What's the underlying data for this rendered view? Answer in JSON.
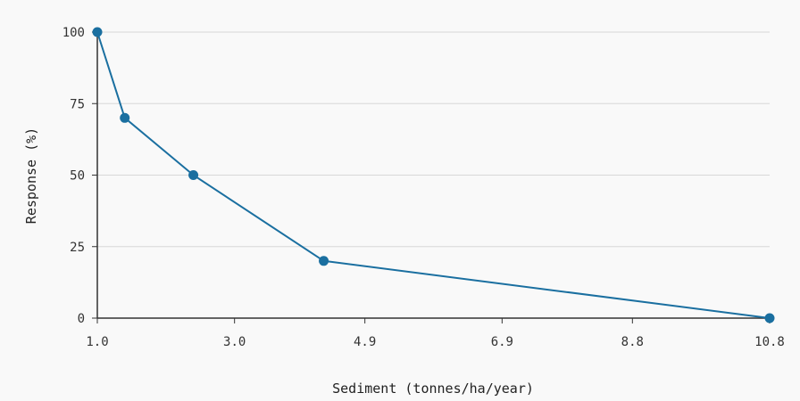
{
  "chart_data": {
    "type": "line",
    "title": "",
    "xlabel": "Sediment (tonnes/ha/year)",
    "ylabel": "Response (%)",
    "x_ticks": [
      "1.0",
      "3.0",
      "4.9",
      "6.9",
      "8.8",
      "10.8"
    ],
    "y_ticks": [
      "0",
      "25",
      "50",
      "75",
      "100"
    ],
    "xlim": [
      1.0,
      10.8
    ],
    "ylim": [
      0,
      100
    ],
    "grid": "horizontal",
    "legend": "none",
    "series": [
      {
        "color": "#1a6fa0",
        "x": [
          1.0,
          1.4,
          2.4,
          4.3,
          10.8
        ],
        "y": [
          100,
          70,
          50,
          20,
          0
        ]
      }
    ]
  }
}
